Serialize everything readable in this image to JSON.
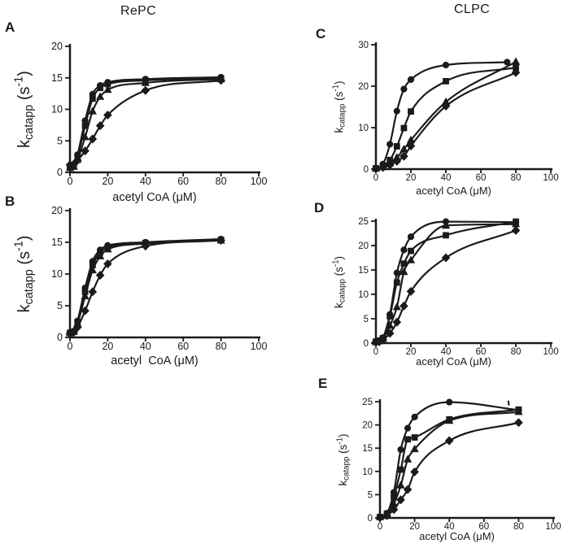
{
  "figure": {
    "column_headers": [
      {
        "text": "RePC"
      },
      {
        "text": "CLPC"
      }
    ]
  },
  "axis": {
    "ylabel_plain": "kcatapp (s-1)",
    "ylabel_parts": {
      "base": "k",
      "sub": "catapp",
      "mid": " (s",
      "sup": "-1",
      "end": ")"
    }
  },
  "colors": {
    "ink": "#1b1b1b",
    "background": "#ffffff"
  },
  "chart_data": [
    {
      "panel": "A",
      "group": "RePC",
      "type": "line",
      "title": "",
      "xlabel": "acetyl CoA (μM)",
      "ylabel": "kcatapp (s-1)",
      "xlim": [
        0,
        100
      ],
      "ylim": [
        0,
        20
      ],
      "xticks": [
        0,
        20,
        40,
        60,
        80,
        100
      ],
      "yticks": [
        0,
        5,
        10,
        15,
        20
      ],
      "grid": false,
      "legend": "none",
      "series": [
        {
          "name": "circle",
          "marker": "circle",
          "points": [
            [
              0,
              0.9
            ],
            [
              2,
              1.1
            ],
            [
              4,
              2.8
            ],
            [
              8,
              8.2
            ],
            [
              12,
              12.4
            ],
            [
              16,
              13.8
            ],
            [
              20,
              14.3
            ],
            [
              40,
              14.8
            ],
            [
              80,
              15.1
            ]
          ]
        },
        {
          "name": "square",
          "marker": "square",
          "points": [
            [
              0,
              0.8
            ],
            [
              2,
              1.0
            ],
            [
              4,
              2.5
            ],
            [
              8,
              7.4
            ],
            [
              12,
              11.7
            ],
            [
              16,
              13.4
            ],
            [
              20,
              14.0
            ],
            [
              40,
              14.6
            ],
            [
              80,
              14.9
            ]
          ]
        },
        {
          "name": "triangle",
          "marker": "triangle",
          "points": [
            [
              0,
              0.7
            ],
            [
              2,
              0.9
            ],
            [
              4,
              2.0
            ],
            [
              8,
              5.6
            ],
            [
              12,
              9.7
            ],
            [
              16,
              12.0
            ],
            [
              20,
              13.1
            ],
            [
              40,
              14.2
            ],
            [
              80,
              14.8
            ]
          ]
        },
        {
          "name": "diamond",
          "marker": "diamond",
          "points": [
            [
              0,
              1.2
            ],
            [
              2,
              1.3
            ],
            [
              4,
              1.9
            ],
            [
              8,
              3.4
            ],
            [
              12,
              5.3
            ],
            [
              16,
              7.4
            ],
            [
              20,
              9.1
            ],
            [
              40,
              13.0
            ],
            [
              80,
              14.6
            ]
          ]
        }
      ]
    },
    {
      "panel": "B",
      "group": "RePC",
      "type": "line",
      "title": "",
      "xlabel": "acetyl  CoA (μM)",
      "ylabel": "kcatapp (s-1)",
      "xlim": [
        0,
        100
      ],
      "ylim": [
        0,
        20
      ],
      "xticks": [
        0,
        20,
        40,
        60,
        80,
        100
      ],
      "yticks": [
        0,
        5,
        10,
        15,
        20
      ],
      "grid": false,
      "legend": "none",
      "series": [
        {
          "name": "circle",
          "marker": "circle",
          "points": [
            [
              0,
              0.8
            ],
            [
              2,
              1.0
            ],
            [
              4,
              2.6
            ],
            [
              8,
              7.8
            ],
            [
              12,
              12.0
            ],
            [
              16,
              13.8
            ],
            [
              20,
              14.5
            ],
            [
              40,
              15.0
            ],
            [
              80,
              15.5
            ]
          ]
        },
        {
          "name": "square",
          "marker": "square",
          "points": [
            [
              0,
              0.7
            ],
            [
              2,
              0.9
            ],
            [
              4,
              2.4
            ],
            [
              8,
              7.2
            ],
            [
              12,
              11.4
            ],
            [
              16,
              13.4
            ],
            [
              20,
              14.2
            ],
            [
              40,
              14.9
            ],
            [
              80,
              15.4
            ]
          ]
        },
        {
          "name": "triangle",
          "marker": "triangle",
          "points": [
            [
              0,
              0.7
            ],
            [
              2,
              0.9
            ],
            [
              4,
              2.2
            ],
            [
              8,
              6.5
            ],
            [
              12,
              10.6
            ],
            [
              16,
              12.8
            ],
            [
              20,
              13.9
            ],
            [
              40,
              14.8
            ],
            [
              80,
              15.3
            ]
          ]
        },
        {
          "name": "diamond",
          "marker": "diamond",
          "points": [
            [
              0,
              0.6
            ],
            [
              2,
              0.8
            ],
            [
              4,
              1.6
            ],
            [
              8,
              4.2
            ],
            [
              12,
              7.2
            ],
            [
              16,
              9.8
            ],
            [
              20,
              11.6
            ],
            [
              40,
              14.4
            ],
            [
              80,
              15.3
            ]
          ]
        }
      ]
    },
    {
      "panel": "C",
      "group": "CLPC",
      "type": "line",
      "title": "",
      "xlabel": "acetyl CoA (μM)",
      "ylabel": "kcatapp (s-1)",
      "xlim": [
        0,
        100
      ],
      "ylim": [
        0,
        30
      ],
      "xticks": [
        0,
        20,
        40,
        60,
        80,
        100
      ],
      "yticks": [
        0,
        10,
        20,
        30
      ],
      "grid": false,
      "legend": "none",
      "series": [
        {
          "name": "circle",
          "marker": "circle",
          "points": [
            [
              0,
              0.2
            ],
            [
              4,
              1.2
            ],
            [
              8,
              6.0
            ],
            [
              12,
              14.0
            ],
            [
              16,
              19.3
            ],
            [
              20,
              21.6
            ],
            [
              40,
              25.1
            ],
            [
              75,
              25.8
            ]
          ]
        },
        {
          "name": "square",
          "marker": "square",
          "points": [
            [
              0,
              0.2
            ],
            [
              4,
              0.8
            ],
            [
              8,
              2.2
            ],
            [
              12,
              5.5
            ],
            [
              16,
              9.9
            ],
            [
              20,
              13.9
            ],
            [
              40,
              21.2
            ],
            [
              80,
              24.5
            ]
          ]
        },
        {
          "name": "triangle",
          "marker": "triangle",
          "points": [
            [
              0,
              0.1
            ],
            [
              4,
              0.5
            ],
            [
              8,
              1.4
            ],
            [
              12,
              2.8
            ],
            [
              16,
              4.8
            ],
            [
              20,
              7.0
            ],
            [
              40,
              16.2
            ],
            [
              80,
              25.9
            ]
          ]
        },
        {
          "name": "diamond",
          "marker": "diamond",
          "points": [
            [
              0,
              0.1
            ],
            [
              4,
              0.4
            ],
            [
              8,
              1.0
            ],
            [
              12,
              1.9
            ],
            [
              16,
              3.1
            ],
            [
              20,
              5.6
            ],
            [
              40,
              15.2
            ],
            [
              80,
              23.3
            ]
          ]
        }
      ]
    },
    {
      "panel": "D",
      "group": "CLPC",
      "type": "line",
      "title": "",
      "xlabel": "acetyl CoA (μM)",
      "ylabel": "kcatapp (s-1)",
      "xlim": [
        0,
        100
      ],
      "ylim": [
        0,
        25
      ],
      "xticks": [
        0,
        20,
        40,
        60,
        80,
        100
      ],
      "yticks": [
        0,
        5,
        10,
        15,
        20,
        25
      ],
      "grid": false,
      "legend": "none",
      "series": [
        {
          "name": "circle",
          "marker": "circle",
          "points": [
            [
              0,
              0.3
            ],
            [
              2,
              0.5
            ],
            [
              4,
              1.1
            ],
            [
              8,
              5.9
            ],
            [
              12,
              14.4
            ],
            [
              16,
              19.1
            ],
            [
              20,
              21.8
            ],
            [
              40,
              24.9
            ],
            [
              80,
              24.8
            ]
          ]
        },
        {
          "name": "square",
          "marker": "square",
          "points": [
            [
              0,
              0.3
            ],
            [
              2,
              0.5
            ],
            [
              4,
              1.0
            ],
            [
              8,
              5.5
            ],
            [
              12,
              12.4
            ],
            [
              16,
              16.3
            ],
            [
              20,
              18.9
            ],
            [
              40,
              22.1
            ],
            [
              80,
              24.9
            ]
          ]
        },
        {
          "name": "triangle",
          "marker": "triangle",
          "points": [
            [
              0,
              0.2
            ],
            [
              2,
              0.4
            ],
            [
              4,
              0.9
            ],
            [
              8,
              3.6
            ],
            [
              12,
              7.4
            ],
            [
              16,
              14.6
            ],
            [
              20,
              17.0
            ],
            [
              40,
              24.1
            ],
            [
              80,
              24.4
            ]
          ]
        },
        {
          "name": "diamond",
          "marker": "diamond",
          "points": [
            [
              0,
              0.2
            ],
            [
              2,
              0.3
            ],
            [
              4,
              0.7
            ],
            [
              8,
              2.0
            ],
            [
              12,
              4.3
            ],
            [
              16,
              7.6
            ],
            [
              20,
              10.6
            ],
            [
              40,
              17.5
            ],
            [
              80,
              23.1
            ]
          ]
        }
      ]
    },
    {
      "panel": "E",
      "group": "CLPC",
      "type": "line",
      "title": "",
      "xlabel": "acetyl CoA (μM)",
      "ylabel": "kcatapp (s-1)",
      "xlim": [
        0,
        100
      ],
      "ylim": [
        0,
        25
      ],
      "xticks": [
        0,
        20,
        40,
        60,
        80,
        100
      ],
      "yticks": [
        0,
        5,
        10,
        15,
        20,
        25
      ],
      "grid": false,
      "legend": "none",
      "stray_mark": {
        "x": 74,
        "y": 24.7
      },
      "series": [
        {
          "name": "circle",
          "marker": "circle",
          "points": [
            [
              0,
              0.2
            ],
            [
              4,
              1.0
            ],
            [
              8,
              5.5
            ],
            [
              12,
              14.7
            ],
            [
              16,
              19.3
            ],
            [
              20,
              21.7
            ],
            [
              40,
              24.9
            ],
            [
              80,
              23.2
            ]
          ]
        },
        {
          "name": "square",
          "marker": "square",
          "points": [
            [
              0,
              0.2
            ],
            [
              4,
              0.9
            ],
            [
              8,
              4.5
            ],
            [
              12,
              10.4
            ],
            [
              16,
              16.9
            ],
            [
              20,
              17.3
            ],
            [
              40,
              21.2
            ],
            [
              80,
              23.3
            ]
          ]
        },
        {
          "name": "triangle",
          "marker": "triangle",
          "points": [
            [
              0,
              0.2
            ],
            [
              4,
              0.7
            ],
            [
              8,
              3.0
            ],
            [
              12,
              7.0
            ],
            [
              16,
              12.6
            ],
            [
              20,
              14.8
            ],
            [
              40,
              20.9
            ],
            [
              80,
              22.8
            ]
          ]
        },
        {
          "name": "diamond",
          "marker": "diamond",
          "points": [
            [
              0,
              0.1
            ],
            [
              4,
              0.5
            ],
            [
              8,
              1.8
            ],
            [
              12,
              3.9
            ],
            [
              16,
              6.1
            ],
            [
              20,
              9.9
            ],
            [
              40,
              16.6
            ],
            [
              80,
              20.5
            ]
          ]
        }
      ]
    }
  ]
}
